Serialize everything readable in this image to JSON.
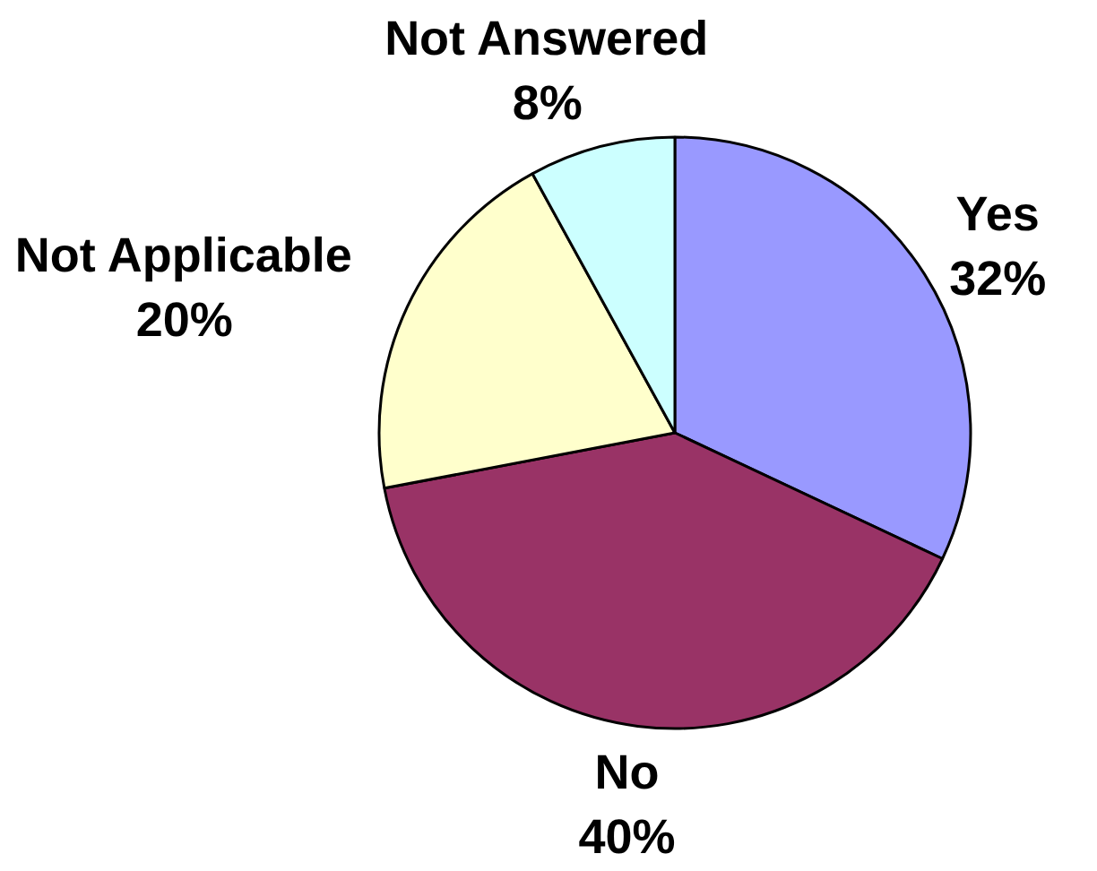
{
  "chart_data": {
    "type": "pie",
    "categories": [
      "Yes",
      "No",
      "Not Applicable",
      "Not Answered"
    ],
    "values": [
      32,
      40,
      20,
      8
    ],
    "colors": [
      "#9999ff",
      "#993366",
      "#ffffcc",
      "#ccffff"
    ],
    "value_labels": [
      "32%",
      "40%",
      "20%",
      "8%"
    ]
  }
}
